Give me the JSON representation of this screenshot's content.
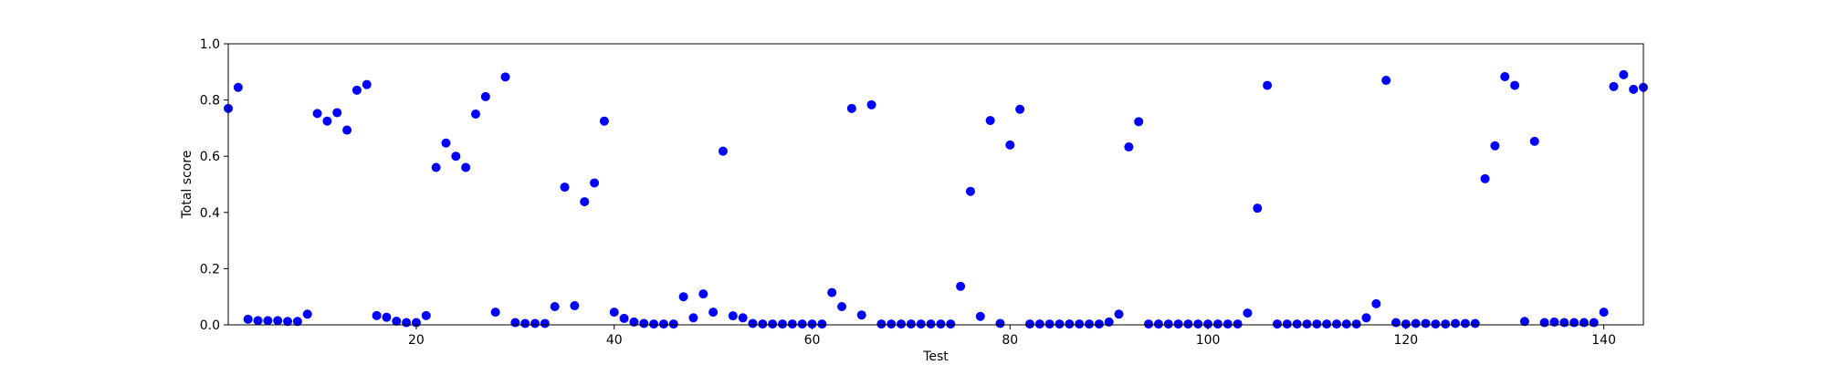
{
  "chart_data": {
    "type": "scatter",
    "xlabel": "Test",
    "ylabel": "Total score",
    "xlim": [
      1,
      144
    ],
    "ylim": [
      0.0,
      1.0
    ],
    "xticks": [
      20,
      40,
      60,
      80,
      100,
      120,
      140
    ],
    "yticks": [
      0.0,
      0.2,
      0.4,
      0.6,
      0.8,
      1.0
    ],
    "grid": false,
    "marker_color": "#0000ff",
    "x": [
      1,
      2,
      3,
      4,
      5,
      6,
      7,
      8,
      9,
      10,
      11,
      12,
      13,
      14,
      15,
      16,
      17,
      18,
      19,
      20,
      21,
      22,
      23,
      24,
      25,
      26,
      27,
      28,
      29,
      30,
      31,
      32,
      33,
      34,
      35,
      36,
      37,
      38,
      39,
      40,
      41,
      42,
      43,
      44,
      45,
      46,
      47,
      48,
      49,
      50,
      51,
      52,
      53,
      54,
      55,
      56,
      57,
      58,
      59,
      60,
      61,
      62,
      63,
      64,
      65,
      66,
      67,
      68,
      69,
      70,
      71,
      72,
      73,
      74,
      75,
      76,
      77,
      78,
      79,
      80,
      81,
      82,
      83,
      84,
      85,
      86,
      87,
      88,
      89,
      90,
      91,
      92,
      93,
      94,
      95,
      96,
      97,
      98,
      99,
      100,
      101,
      102,
      103,
      104,
      105,
      106,
      107,
      108,
      109,
      110,
      111,
      112,
      113,
      114,
      115,
      116,
      117,
      118,
      119,
      120,
      121,
      122,
      123,
      124,
      125,
      126,
      127,
      128,
      129,
      130,
      131,
      132,
      133,
      134,
      135,
      136,
      137,
      138,
      139,
      140,
      141,
      142,
      143,
      144
    ],
    "y": [
      0.77,
      0.845,
      0.02,
      0.015,
      0.015,
      0.015,
      0.012,
      0.012,
      0.038,
      0.752,
      0.725,
      0.755,
      0.693,
      0.835,
      0.855,
      0.033,
      0.027,
      0.013,
      0.008,
      0.008,
      0.033,
      0.56,
      0.647,
      0.6,
      0.56,
      0.75,
      0.812,
      0.045,
      0.882,
      0.008,
      0.005,
      0.005,
      0.005,
      0.065,
      0.49,
      0.068,
      0.438,
      0.505,
      0.725,
      0.045,
      0.023,
      0.01,
      0.005,
      0.003,
      0.003,
      0.003,
      0.1,
      0.025,
      0.11,
      0.045,
      0.618,
      0.032,
      0.025,
      0.005,
      0.003,
      0.003,
      0.003,
      0.003,
      0.003,
      0.003,
      0.003,
      0.115,
      0.065,
      0.77,
      0.035,
      0.783,
      0.003,
      0.003,
      0.003,
      0.003,
      0.003,
      0.003,
      0.003,
      0.003,
      0.137,
      0.475,
      0.03,
      0.727,
      0.005,
      0.64,
      0.767,
      0.003,
      0.003,
      0.003,
      0.003,
      0.003,
      0.003,
      0.003,
      0.003,
      0.01,
      0.038,
      0.633,
      0.723,
      0.003,
      0.003,
      0.003,
      0.003,
      0.003,
      0.003,
      0.003,
      0.003,
      0.003,
      0.003,
      0.042,
      0.415,
      0.852,
      0.003,
      0.003,
      0.003,
      0.003,
      0.003,
      0.003,
      0.003,
      0.003,
      0.003,
      0.025,
      0.075,
      0.87,
      0.008,
      0.003,
      0.005,
      0.005,
      0.003,
      0.003,
      0.005,
      0.005,
      0.005,
      0.52,
      0.637,
      0.883,
      0.852,
      0.012,
      0.653,
      0.008,
      0.01,
      0.008,
      0.008,
      0.008,
      0.008,
      0.045,
      0.848,
      0.89,
      0.838,
      0.845
    ]
  }
}
